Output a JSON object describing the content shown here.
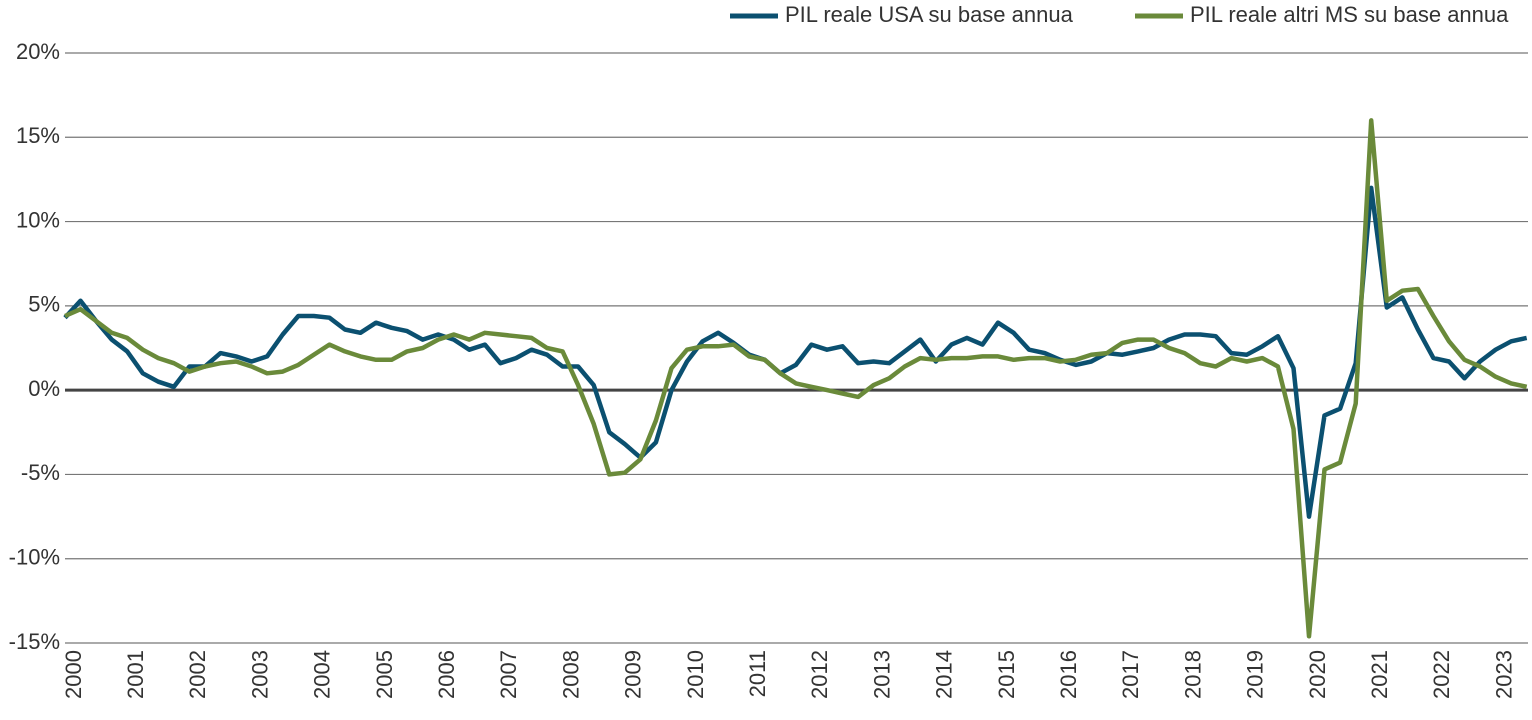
{
  "chart_data": {
    "type": "line",
    "categories": [
      "2000",
      null,
      null,
      null,
      "2001",
      null,
      null,
      null,
      "2002",
      null,
      null,
      null,
      "2003",
      null,
      null,
      null,
      "2004",
      null,
      null,
      null,
      "2005",
      null,
      null,
      null,
      "2006",
      null,
      null,
      null,
      "2007",
      null,
      null,
      null,
      "2008",
      null,
      null,
      null,
      "2009",
      null,
      null,
      null,
      "2010",
      null,
      null,
      null,
      "2011",
      null,
      null,
      null,
      "2012",
      null,
      null,
      null,
      "2013",
      null,
      null,
      null,
      "2014",
      null,
      null,
      null,
      "2015",
      null,
      null,
      null,
      "2016",
      null,
      null,
      null,
      "2017",
      null,
      null,
      null,
      "2018",
      null,
      null,
      null,
      "2019",
      null,
      null,
      null,
      "2020",
      null,
      null,
      null,
      "2021",
      null,
      null,
      null,
      "2022",
      null,
      null,
      null,
      "2023",
      null,
      null
    ],
    "series": [
      {
        "name": "PIL reale USA su base annua",
        "color": "#0b5070",
        "values": [
          4.3,
          5.3,
          4.1,
          3.0,
          2.3,
          1.0,
          0.5,
          0.2,
          1.4,
          1.4,
          2.2,
          2.0,
          1.7,
          2.0,
          3.3,
          4.4,
          4.4,
          4.3,
          3.6,
          3.4,
          4.0,
          3.7,
          3.5,
          3.0,
          3.3,
          3.0,
          2.4,
          2.7,
          1.6,
          1.9,
          2.4,
          2.1,
          1.4,
          1.4,
          0.3,
          -2.5,
          -3.2,
          -4.0,
          -3.1,
          0.0,
          1.7,
          2.9,
          3.4,
          2.8,
          2.1,
          1.8,
          1.0,
          1.5,
          2.7,
          2.4,
          2.6,
          1.6,
          1.7,
          1.6,
          2.3,
          3.0,
          1.7,
          2.7,
          3.1,
          2.7,
          4.0,
          3.4,
          2.4,
          2.2,
          1.8,
          1.5,
          1.7,
          2.2,
          2.1,
          2.3,
          2.5,
          3.0,
          3.3,
          3.3,
          3.2,
          2.2,
          2.1,
          2.6,
          3.2,
          1.3,
          -7.5,
          -1.5,
          -1.1,
          1.6,
          12.0,
          4.9,
          5.5,
          3.6,
          1.9,
          1.7,
          0.7,
          1.7,
          2.4,
          2.9,
          3.1
        ]
      },
      {
        "name": "PIL reale altri MS su base annua",
        "color": "#6a8a3a",
        "values": [
          4.4,
          4.8,
          4.1,
          3.4,
          3.1,
          2.4,
          1.9,
          1.6,
          1.1,
          1.4,
          1.6,
          1.7,
          1.4,
          1.0,
          1.1,
          1.5,
          2.1,
          2.7,
          2.3,
          2.0,
          1.8,
          1.8,
          2.3,
          2.5,
          3.0,
          3.3,
          3.0,
          3.4,
          3.3,
          3.2,
          3.1,
          2.5,
          2.3,
          0.3,
          -2.0,
          -5.0,
          -4.9,
          -4.1,
          -1.8,
          1.3,
          2.4,
          2.6,
          2.6,
          2.7,
          2.0,
          1.8,
          1.0,
          0.4,
          0.2,
          0.0,
          -0.2,
          -0.4,
          0.3,
          0.7,
          1.4,
          1.9,
          1.8,
          1.9,
          1.9,
          2.0,
          2.0,
          1.8,
          1.9,
          1.9,
          1.7,
          1.8,
          2.1,
          2.2,
          2.8,
          3.0,
          3.0,
          2.5,
          2.2,
          1.6,
          1.4,
          1.9,
          1.7,
          1.9,
          1.4,
          -2.3,
          -14.6,
          -4.7,
          -4.3,
          -0.8,
          16.0,
          5.3,
          5.9,
          6.0,
          4.4,
          2.9,
          1.8,
          1.4,
          0.8,
          0.4,
          0.2
        ]
      }
    ],
    "ylim": [
      -15,
      20
    ],
    "yticks": [
      {
        "value": -15,
        "label": "-15%"
      },
      {
        "value": -10,
        "label": "-10%"
      },
      {
        "value": -5,
        "label": "-5%"
      },
      {
        "value": 0,
        "label": "0%"
      },
      {
        "value": 5,
        "label": "5%"
      },
      {
        "value": 10,
        "label": "10%"
      },
      {
        "value": 15,
        "label": "15%"
      },
      {
        "value": 20,
        "label": "20%"
      }
    ],
    "grid": true,
    "legend": "top-right"
  }
}
